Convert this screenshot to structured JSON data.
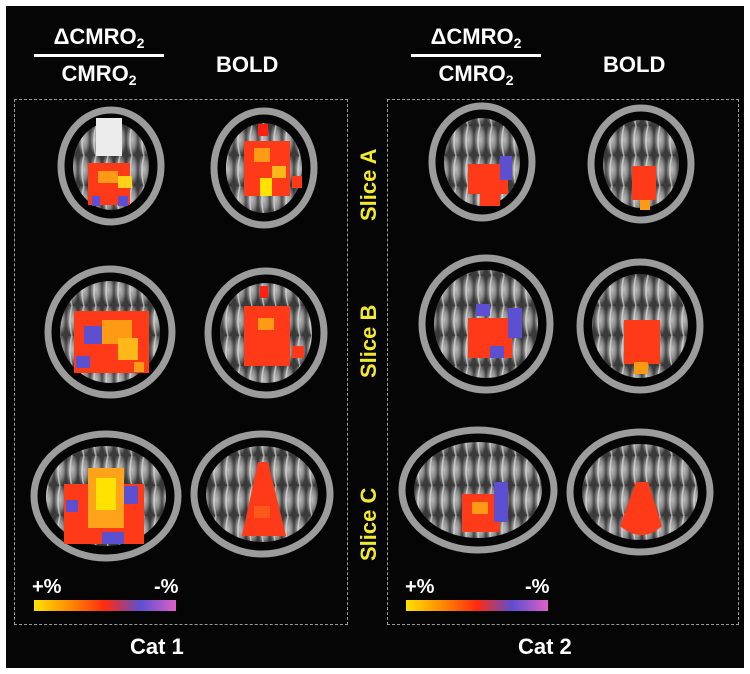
{
  "panels": [
    {
      "id": "cat1",
      "cmro_numerator": "ΔCMRO",
      "cmro_denominator": "CMRO",
      "subscript": "2",
      "bold_header": "BOLD",
      "scale_plus": "+%",
      "scale_minus": "-%",
      "label": "Cat 1"
    },
    {
      "id": "cat2",
      "cmro_numerator": "ΔCMRO",
      "cmro_denominator": "CMRO",
      "subscript": "2",
      "bold_header": "BOLD",
      "scale_plus": "+%",
      "scale_minus": "-%",
      "label": "Cat 2"
    }
  ],
  "slices": [
    "Slice A",
    "Slice B",
    "Slice C"
  ],
  "colors": {
    "background": "#050505",
    "slice_label": "#f2ea2a",
    "dashed_border": "#9a9a9a",
    "colorbar": [
      "#ffe200",
      "#ff8c00",
      "#ff2a10",
      "#5c4fd0",
      "#e060c8"
    ]
  }
}
